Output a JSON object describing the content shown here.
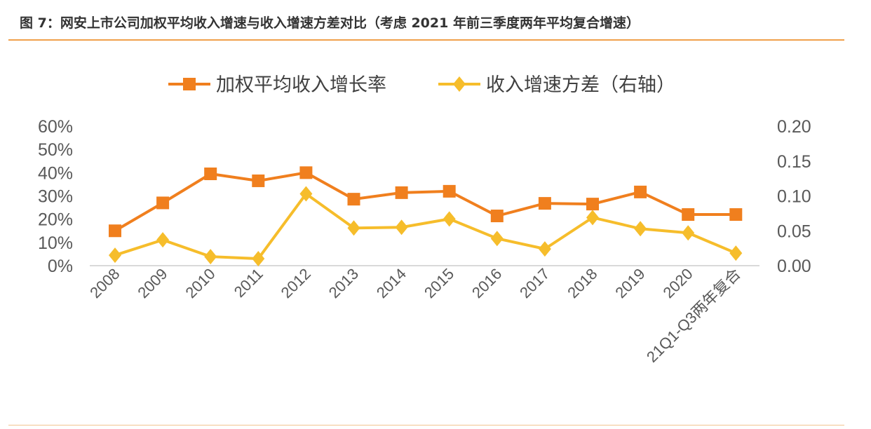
{
  "title": "图 7：网安上市公司加权平均收入增速与收入增速方差对比（考虑 2021 年前三季度两年平均复合增速）",
  "chart_data": {
    "type": "line",
    "categories": [
      "2008",
      "2009",
      "2010",
      "2011",
      "2012",
      "2013",
      "2014",
      "2015",
      "2016",
      "2017",
      "2018",
      "2019",
      "2020",
      "21Q1-Q3两年复合"
    ],
    "series": [
      {
        "name": "加权平均收入增长率",
        "axis": "left",
        "color": "#f07f1e",
        "marker": "square",
        "values": [
          0.15,
          0.27,
          0.395,
          0.365,
          0.4,
          0.286,
          0.314,
          0.32,
          0.214,
          0.268,
          0.265,
          0.317,
          0.22,
          0.22
        ]
      },
      {
        "name": "收入增速方差（右轴）",
        "axis": "right",
        "color": "#f6bd2b",
        "marker": "diamond",
        "values": [
          0.015,
          0.037,
          0.013,
          0.01,
          0.103,
          0.054,
          0.055,
          0.067,
          0.039,
          0.024,
          0.069,
          0.053,
          0.047,
          0.018
        ]
      }
    ],
    "left_axis": {
      "ylim": [
        0,
        0.6
      ],
      "ticks": [
        "0%",
        "10%",
        "20%",
        "30%",
        "40%",
        "50%",
        "60%"
      ]
    },
    "right_axis": {
      "ylim": [
        0,
        0.2
      ],
      "ticks": [
        "0.00",
        "0.05",
        "0.10",
        "0.15",
        "0.20"
      ]
    },
    "legend": "top",
    "grid": false
  }
}
